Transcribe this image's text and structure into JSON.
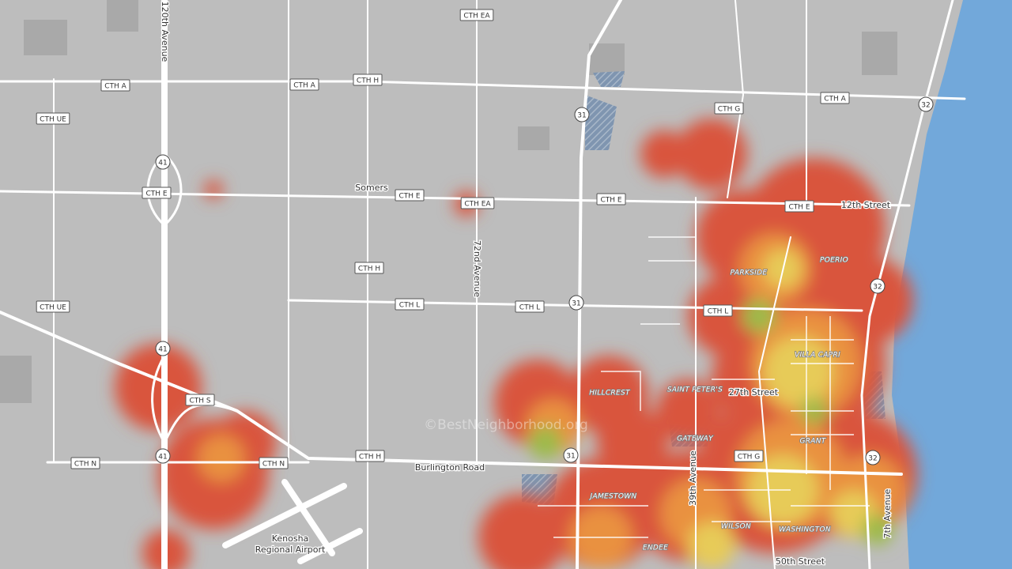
{
  "road_shields": [
    "CTH A",
    "CTH A",
    "CTH H",
    "CTH EA",
    "CTH G",
    "CTH A",
    "32",
    "CTH UE",
    "41",
    "CTH E",
    "CTH E",
    "CTH EA",
    "CTH E",
    "CTH E",
    "31",
    "CTH H",
    "32",
    "CTH UE",
    "CTH L",
    "CTH L",
    "31",
    "CTH L",
    "41",
    "CTH S",
    "CTH N",
    "CTH N",
    "CTH H",
    "31",
    "CTH G",
    "32",
    "41"
  ],
  "street_labels": [
    "120th Avenue",
    "Somers",
    "12th Street",
    "72nd Avenue",
    "27th Street",
    "Burlington Road",
    "39th Avenue",
    "7th Avenue",
    "50th Street",
    "Kenosha",
    "Regional Airport"
  ],
  "neighborhoods": [
    "POERIO",
    "PARKSIDE",
    "VILLA CAPRI",
    "HILLCREST",
    "SAINT PETER'S",
    "GATEWAY",
    "GRANT",
    "JAMESTOWN",
    "WILSON",
    "WASHINGTON",
    "ENDEE"
  ],
  "watermark": "©BestNeighborhood.org"
}
